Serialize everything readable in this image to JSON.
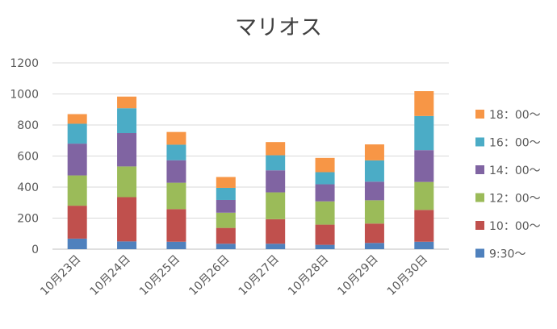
{
  "chart_data": {
    "type": "bar",
    "stacked": true,
    "title": "マリオス",
    "xlabel": "",
    "ylabel": "",
    "ylim": [
      0,
      1200
    ],
    "yticks": [
      0,
      200,
      400,
      600,
      800,
      1000,
      1200
    ],
    "grid": true,
    "legend_position": "right",
    "categories": [
      "10月23日",
      "10月24日",
      "10月25日",
      "10月26日",
      "10月27日",
      "10月28日",
      "10月29日",
      "10月30日"
    ],
    "series": [
      {
        "name": "9:30〜",
        "color": "#4F81BD",
        "values": [
          68,
          50,
          48,
          35,
          35,
          28,
          40,
          48
        ]
      },
      {
        "name": "10：00〜",
        "color": "#C0504D",
        "values": [
          212,
          285,
          210,
          102,
          158,
          130,
          125,
          205
        ]
      },
      {
        "name": "12：00〜",
        "color": "#9BBB59",
        "values": [
          195,
          198,
          170,
          98,
          173,
          150,
          150,
          180
        ]
      },
      {
        "name": "14：00〜",
        "color": "#8064A2",
        "values": [
          205,
          215,
          145,
          82,
          142,
          110,
          120,
          205
        ]
      },
      {
        "name": "16：00〜",
        "color": "#4BACC6",
        "values": [
          128,
          160,
          100,
          78,
          97,
          78,
          137,
          220
        ]
      },
      {
        "name": "18：00〜",
        "color": "#F79646",
        "values": [
          62,
          75,
          82,
          70,
          85,
          92,
          103,
          160
        ]
      }
    ]
  }
}
